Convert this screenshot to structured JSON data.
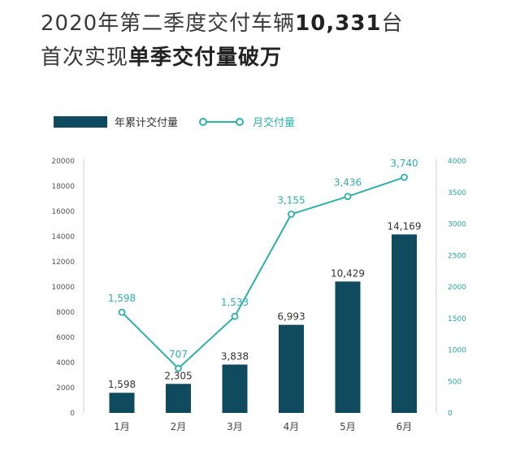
{
  "headline": {
    "line1_prefix": "2020年第二季度交付车辆",
    "line1_bold": "10,331",
    "line1_suffix": "台",
    "line2_prefix": "首次实现",
    "line2_bold": "单季交付量破万"
  },
  "colors": {
    "bar": "#0f4a5e",
    "line": "#2fb0aa"
  },
  "chart_data": {
    "type": "bar+line",
    "categories": [
      "1月",
      "2月",
      "3月",
      "4月",
      "5月",
      "6月"
    ],
    "series": [
      {
        "name": "年累计交付量",
        "type": "bar",
        "axis": "left",
        "values": [
          1598,
          2305,
          3838,
          6993,
          10429,
          14169
        ],
        "labels": [
          "1,598",
          "2,305",
          "3,838",
          "6,993",
          "10,429",
          "14,169"
        ]
      },
      {
        "name": "月交付量",
        "type": "line",
        "axis": "right",
        "values": [
          1598,
          707,
          1533,
          3155,
          3436,
          3740
        ],
        "labels": [
          "1,598",
          "707",
          "1,533",
          "3,155",
          "3,436",
          "3,740"
        ]
      }
    ],
    "y_left": {
      "range": [
        0,
        20000
      ],
      "ticks": [
        "0",
        "2000",
        "4000",
        "6000",
        "8000",
        "10000",
        "12000",
        "14000",
        "16000",
        "18000",
        "20000"
      ]
    },
    "y_right": {
      "range": [
        0,
        4000
      ],
      "ticks": [
        "0",
        "500",
        "1000",
        "1500",
        "2000",
        "2500",
        "3000",
        "3500",
        "4000"
      ]
    },
    "grid": false,
    "legend": "top-left"
  }
}
